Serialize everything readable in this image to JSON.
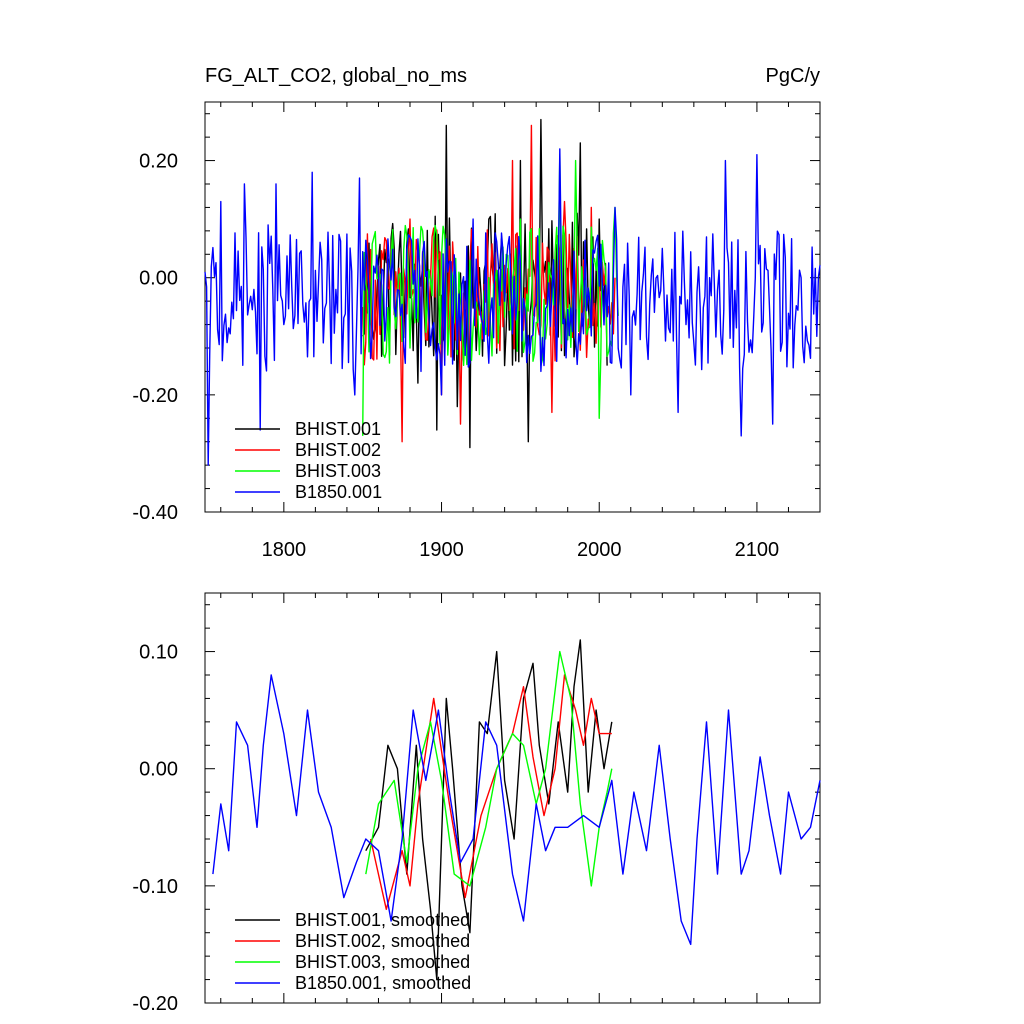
{
  "chart_data": [
    {
      "type": "line",
      "title": "FG_ALT_CO2, global_no_ms",
      "units": "PgC/y",
      "xlim": [
        1750,
        2140
      ],
      "ylim": [
        -0.4,
        0.3
      ],
      "xticks": [
        1800,
        1900,
        2000,
        2100
      ],
      "xtick_labels": [
        "1800",
        "1900",
        "2000",
        "2100"
      ],
      "yticks": [
        -0.4,
        -0.2,
        0.0,
        0.2
      ],
      "ytick_labels": [
        "-0.40",
        "-0.20",
        "0.00",
        "0.20"
      ],
      "legend_position": "bottom-left",
      "series": [
        {
          "name": "BHIST.001",
          "color": "#000000",
          "x_start": 1850,
          "x_end": 2005,
          "amplitude": 0.13,
          "mean": -0.02,
          "anchor_x": [
            1850,
            1870,
            1885,
            1897,
            1903,
            1910,
            1918,
            1930,
            1940,
            1950,
            1955,
            1963,
            1975,
            1985,
            1988,
            1995,
            2000,
            2005
          ],
          "anchor_y": [
            -0.1,
            0.05,
            -0.18,
            -0.26,
            0.26,
            -0.22,
            -0.29,
            0.1,
            -0.15,
            0.2,
            -0.28,
            0.27,
            0.05,
            -0.1,
            0.23,
            -0.05,
            0.1,
            -0.15
          ]
        },
        {
          "name": "BHIST.002",
          "color": "#ff0000",
          "x_start": 1850,
          "x_end": 2010,
          "amplitude": 0.12,
          "mean": -0.03,
          "anchor_x": [
            1850,
            1875,
            1880,
            1900,
            1912,
            1935,
            1945,
            1957,
            1970,
            1978,
            1990,
            1995,
            2010
          ],
          "anchor_y": [
            -0.05,
            -0.28,
            0.1,
            -0.2,
            -0.25,
            -0.12,
            0.2,
            0.26,
            -0.23,
            0.13,
            0.03,
            0.12,
            0.0
          ]
        },
        {
          "name": "BHIST.003",
          "color": "#00ff00",
          "x_start": 1850,
          "x_end": 2012,
          "amplitude": 0.12,
          "mean": -0.03,
          "anchor_x": [
            1850,
            1860,
            1880,
            1905,
            1930,
            1950,
            1975,
            1985,
            2000,
            2010
          ],
          "anchor_y": [
            -0.27,
            0.0,
            -0.12,
            -0.08,
            0.0,
            0.1,
            0.21,
            0.2,
            -0.24,
            0.12
          ]
        },
        {
          "name": "B1850.001",
          "color": "#0000ff",
          "x_start": 1750,
          "x_end": 2140,
          "amplitude": 0.12,
          "mean": -0.04,
          "anchor_x": [
            1750,
            1752,
            1760,
            1768,
            1775,
            1785,
            1790,
            1795,
            1800,
            1818,
            1845,
            1848,
            1900,
            1920,
            1957,
            1975,
            1985,
            2010,
            2020,
            2040,
            2050,
            2055,
            2070,
            2080,
            2090,
            2100,
            2110,
            2128,
            2138
          ],
          "anchor_y": [
            0.01,
            -0.32,
            0.13,
            -0.07,
            0.16,
            -0.26,
            0.09,
            0.16,
            -0.08,
            0.18,
            -0.2,
            0.17,
            -0.2,
            0.1,
            -0.1,
            0.22,
            -0.1,
            0.12,
            -0.2,
            0.05,
            -0.23,
            -0.08,
            0.0,
            0.2,
            -0.27,
            0.21,
            -0.25,
            0.0,
            -0.1
          ]
        }
      ]
    },
    {
      "type": "line",
      "title": "",
      "xlim": [
        1750,
        2140
      ],
      "ylim": [
        -0.2,
        0.15
      ],
      "xticks": [
        1800,
        1900,
        2000,
        2100
      ],
      "yticks": [
        -0.2,
        -0.1,
        0.0,
        0.1
      ],
      "ytick_labels": [
        "-0.20",
        "-0.10",
        "0.00",
        "0.10"
      ],
      "legend_position": "bottom-left",
      "series": [
        {
          "name": "BHIST.001, smoothed",
          "color": "#000000",
          "x": [
            1852,
            1860,
            1866,
            1872,
            1878,
            1884,
            1888,
            1893,
            1897,
            1903,
            1907,
            1913,
            1918,
            1924,
            1929,
            1935,
            1940,
            1946,
            1952,
            1958,
            1962,
            1968,
            1974,
            1980,
            1984,
            1988,
            1993,
            1998,
            2003,
            2008
          ],
          "y": [
            -0.07,
            -0.05,
            0.02,
            0.0,
            -0.09,
            0.02,
            -0.06,
            -0.12,
            -0.18,
            0.06,
            0.0,
            -0.1,
            -0.14,
            0.04,
            0.03,
            0.1,
            -0.01,
            -0.06,
            0.06,
            0.09,
            0.02,
            -0.03,
            0.04,
            -0.02,
            0.07,
            0.11,
            -0.02,
            0.05,
            0.0,
            0.04
          ]
        },
        {
          "name": "BHIST.002, smoothed",
          "color": "#ff0000",
          "x": [
            1855,
            1865,
            1875,
            1880,
            1885,
            1895,
            1905,
            1915,
            1925,
            1935,
            1945,
            1952,
            1958,
            1965,
            1972,
            1978,
            1985,
            1990,
            1995,
            2000,
            2008
          ],
          "y": [
            -0.06,
            -0.12,
            -0.07,
            -0.1,
            -0.03,
            0.06,
            -0.03,
            -0.11,
            -0.04,
            0.0,
            0.03,
            0.07,
            0.01,
            -0.04,
            0.0,
            0.08,
            0.05,
            0.02,
            0.06,
            0.03,
            0.03
          ]
        },
        {
          "name": "BHIST.003, smoothed",
          "color": "#00ff00",
          "x": [
            1852,
            1860,
            1870,
            1878,
            1885,
            1893,
            1900,
            1908,
            1918,
            1928,
            1935,
            1945,
            1952,
            1960,
            1966,
            1975,
            1982,
            1988,
            1995,
            2000,
            2005,
            2008
          ],
          "y": [
            -0.09,
            -0.03,
            -0.01,
            -0.08,
            0.0,
            0.04,
            -0.01,
            -0.09,
            -0.1,
            -0.05,
            0.0,
            0.03,
            0.02,
            -0.03,
            0.0,
            0.1,
            0.06,
            -0.03,
            -0.1,
            -0.05,
            -0.02,
            0.0
          ]
        },
        {
          "name": "B1850.001, smoothed",
          "color": "#0000ff",
          "x": [
            1755,
            1760,
            1765,
            1770,
            1777,
            1783,
            1787,
            1792,
            1800,
            1808,
            1815,
            1822,
            1830,
            1838,
            1846,
            1852,
            1860,
            1868,
            1875,
            1882,
            1890,
            1898,
            1905,
            1912,
            1920,
            1928,
            1935,
            1945,
            1952,
            1960,
            1966,
            1972,
            1980,
            1990,
            2000,
            2008,
            2015,
            2022,
            2030,
            2038,
            2045,
            2052,
            2058,
            2062,
            2068,
            2075,
            2082,
            2090,
            2095,
            2102,
            2108,
            2115,
            2120,
            2128,
            2134,
            2140
          ],
          "y": [
            -0.09,
            -0.03,
            -0.07,
            0.04,
            0.02,
            -0.05,
            0.02,
            0.08,
            0.03,
            -0.04,
            0.05,
            -0.02,
            -0.05,
            -0.11,
            -0.08,
            -0.06,
            -0.07,
            -0.13,
            -0.06,
            0.05,
            -0.01,
            0.05,
            -0.02,
            -0.08,
            -0.06,
            0.04,
            0.02,
            -0.09,
            -0.13,
            -0.03,
            -0.07,
            -0.05,
            -0.05,
            -0.04,
            -0.05,
            -0.01,
            -0.09,
            -0.02,
            -0.07,
            0.02,
            -0.06,
            -0.13,
            -0.15,
            -0.06,
            0.04,
            -0.09,
            0.05,
            -0.09,
            -0.07,
            0.01,
            -0.04,
            -0.09,
            -0.02,
            -0.06,
            -0.05,
            -0.01
          ]
        }
      ]
    }
  ]
}
